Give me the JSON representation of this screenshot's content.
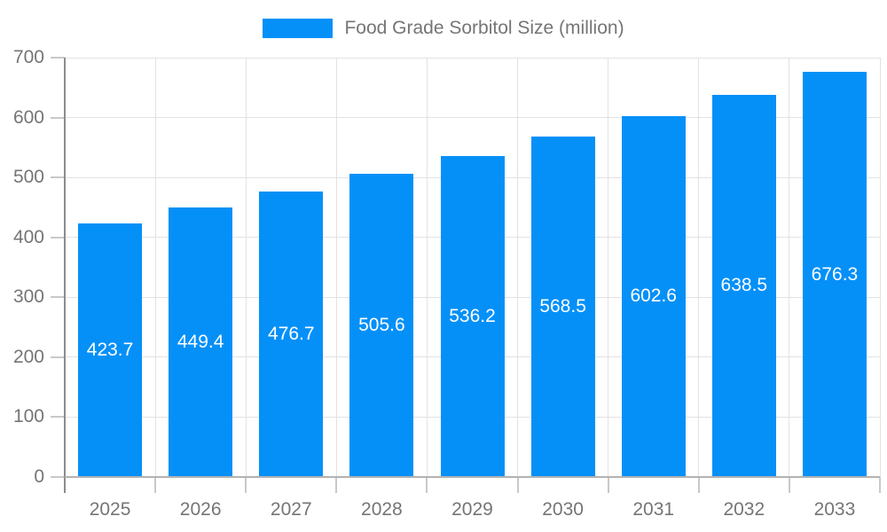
{
  "legend": {
    "label": "Food Grade Sorbitol Size (million)"
  },
  "chart_data": {
    "type": "bar",
    "title": "Food Grade Sorbitol Size (million)",
    "categories": [
      "2025",
      "2026",
      "2027",
      "2028",
      "2029",
      "2030",
      "2031",
      "2032",
      "2033"
    ],
    "series": [
      {
        "name": "Food Grade Sorbitol Size (million)",
        "values": [
          423.7,
          449.4,
          476.7,
          505.6,
          536.2,
          568.5,
          602.6,
          638.5,
          676.3
        ]
      }
    ],
    "xlabel": "",
    "ylabel": "",
    "ylim": [
      0,
      700
    ],
    "yticks": [
      0,
      100,
      200,
      300,
      400,
      500,
      600,
      700
    ],
    "grid": true,
    "legend_position": "top-center",
    "value_labels": "inside-center",
    "colors": {
      "bar": "#0590f8",
      "bar_label": "#ffffff",
      "axis_text": "#757575",
      "legend_text": "#757575",
      "gridline": "#e2e2e2",
      "tick": "#c9c9c9",
      "y_axis_line": "#8c8c8c",
      "x_axis_line": "#b3b3b3",
      "background": "#ffffff"
    }
  }
}
